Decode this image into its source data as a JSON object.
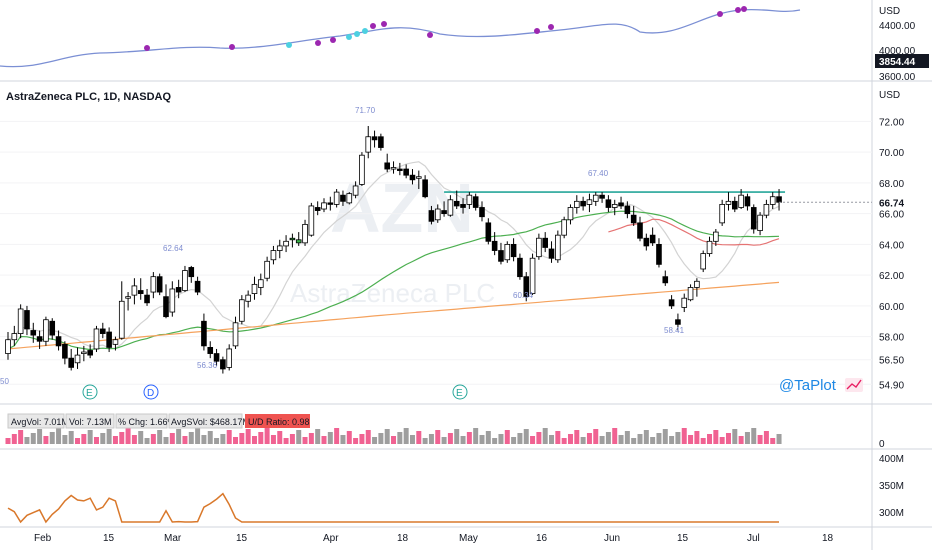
{
  "header": {
    "title": "AstraZeneca PLC, 1D, NASDAQ",
    "currency": "USD",
    "watermark_symbol": "AZN",
    "watermark_name": "AstraZeneca PLC",
    "brand": "@TaPlot"
  },
  "index_pane": {
    "currency": "USD",
    "ticks": [
      "4400.00",
      "4000.00",
      "3600.00"
    ],
    "last_value": "3854.44"
  },
  "volume_stats": {
    "avg_vol": "AvgVol: 7.01M",
    "vol": "Vol: 7.13M",
    "pct_chg": "% Chg: 1.66%",
    "avg_dollar_vol": "AvgSVol: $468.17M",
    "ud_ratio": "U/D Ratio: 0.98",
    "zero_tick": "0"
  },
  "obv_pane": {
    "ticks": [
      "400M",
      "350M",
      "300M"
    ]
  },
  "events": [
    "E",
    "D",
    "E"
  ],
  "colors": {
    "up_candle": "#ffffff",
    "down_candle": "#000000",
    "breakout_candle": "#3cb44b",
    "resistance": "#26a69a",
    "ma_short": "#d3d3d3",
    "ma_mid": "#4caf50",
    "ma_long": "#f5a25d",
    "ma_red": "#e57373",
    "index_line": "#7b8fd4",
    "index_dot": "#9c27b0",
    "index_dot_alt": "#4dd0e1",
    "volume_up": "#f06292",
    "volume_down": "#9e9e9e",
    "obv_line": "#d9782b",
    "ud_badge": "#ef5350"
  },
  "chart_data": {
    "type": "candlestick",
    "symbol": "AZN",
    "interval": "1D",
    "y_axis_ticks": [
      "72.00",
      "70.00",
      "68.00",
      "66.00",
      "64.00",
      "62.00",
      "60.00",
      "58.00",
      "56.50",
      "54.90"
    ],
    "last_price": "66.74",
    "x_axis_labels": [
      "Feb",
      "15",
      "Mar",
      "15",
      "Apr",
      "18",
      "May",
      "16",
      "Jun",
      "15",
      "Jul",
      "18"
    ],
    "resistance_level": 67.4,
    "annotations": [
      {
        "label": "50",
        "value": 50
      },
      {
        "label": "62.64",
        "value": 62.64
      },
      {
        "label": "56.36",
        "value": 56.36
      },
      {
        "label": "71.70",
        "value": 71.7
      },
      {
        "label": "60.34",
        "value": 60.34
      },
      {
        "label": "67.40",
        "value": 67.4
      },
      {
        "label": "58.41",
        "value": 58.41
      }
    ],
    "candles": [
      {
        "o": 56.9,
        "h": 58.3,
        "l": 56.5,
        "c": 57.8
      },
      {
        "o": 57.8,
        "h": 58.7,
        "l": 57.4,
        "c": 58.2
      },
      {
        "o": 58.2,
        "h": 60.1,
        "l": 57.9,
        "c": 59.8
      },
      {
        "o": 59.7,
        "h": 60.0,
        "l": 58.1,
        "c": 58.5
      },
      {
        "o": 58.4,
        "h": 58.9,
        "l": 57.6,
        "c": 58.1
      },
      {
        "o": 58.0,
        "h": 58.4,
        "l": 57.2,
        "c": 57.7
      },
      {
        "o": 57.7,
        "h": 59.3,
        "l": 57.4,
        "c": 59.1
      },
      {
        "o": 59.0,
        "h": 59.2,
        "l": 57.8,
        "c": 58.1
      },
      {
        "o": 58.0,
        "h": 58.4,
        "l": 57.1,
        "c": 57.4
      },
      {
        "o": 57.5,
        "h": 57.7,
        "l": 56.2,
        "c": 56.6
      },
      {
        "o": 56.6,
        "h": 57.2,
        "l": 55.8,
        "c": 56.0
      },
      {
        "o": 56.3,
        "h": 57.3,
        "l": 55.9,
        "c": 56.8
      },
      {
        "o": 56.9,
        "h": 57.4,
        "l": 56.4,
        "c": 57.0
      },
      {
        "o": 57.1,
        "h": 57.5,
        "l": 56.6,
        "c": 56.8
      },
      {
        "o": 57.2,
        "h": 58.7,
        "l": 57.0,
        "c": 58.5
      },
      {
        "o": 58.5,
        "h": 58.9,
        "l": 57.9,
        "c": 58.2
      },
      {
        "o": 58.3,
        "h": 58.6,
        "l": 57.0,
        "c": 57.3
      },
      {
        "o": 57.5,
        "h": 58.0,
        "l": 57.1,
        "c": 57.8
      },
      {
        "o": 57.9,
        "h": 61.6,
        "l": 57.8,
        "c": 60.3
      },
      {
        "o": 60.5,
        "h": 60.9,
        "l": 59.7,
        "c": 60.6
      },
      {
        "o": 60.7,
        "h": 61.8,
        "l": 60.1,
        "c": 61.3
      },
      {
        "o": 61.0,
        "h": 61.8,
        "l": 60.4,
        "c": 60.8
      },
      {
        "o": 60.7,
        "h": 61.1,
        "l": 60.0,
        "c": 60.2
      },
      {
        "o": 60.9,
        "h": 62.2,
        "l": 60.5,
        "c": 61.9
      },
      {
        "o": 61.9,
        "h": 62.1,
        "l": 60.7,
        "c": 60.9
      },
      {
        "o": 60.6,
        "h": 61.4,
        "l": 59.2,
        "c": 59.3
      },
      {
        "o": 59.6,
        "h": 61.6,
        "l": 59.3,
        "c": 61.1
      },
      {
        "o": 61.2,
        "h": 61.7,
        "l": 60.5,
        "c": 60.9
      },
      {
        "o": 61.0,
        "h": 62.6,
        "l": 60.9,
        "c": 62.3
      },
      {
        "o": 62.5,
        "h": 62.6,
        "l": 61.5,
        "c": 61.9
      },
      {
        "o": 61.6,
        "h": 61.9,
        "l": 60.7,
        "c": 60.9
      },
      {
        "o": 59.0,
        "h": 59.5,
        "l": 57.1,
        "c": 57.4
      },
      {
        "o": 57.3,
        "h": 57.7,
        "l": 56.6,
        "c": 56.9
      },
      {
        "o": 56.9,
        "h": 57.2,
        "l": 56.1,
        "c": 56.4
      },
      {
        "o": 56.5,
        "h": 56.7,
        "l": 55.6,
        "c": 55.9
      },
      {
        "o": 56.0,
        "h": 57.5,
        "l": 55.8,
        "c": 57.2
      },
      {
        "o": 57.4,
        "h": 59.3,
        "l": 57.2,
        "c": 58.9
      },
      {
        "o": 59.0,
        "h": 60.7,
        "l": 58.8,
        "c": 60.4
      },
      {
        "o": 60.3,
        "h": 61.0,
        "l": 59.9,
        "c": 60.7
      },
      {
        "o": 60.8,
        "h": 61.9,
        "l": 60.4,
        "c": 61.4
      },
      {
        "o": 61.2,
        "h": 62.1,
        "l": 60.7,
        "c": 61.7
      },
      {
        "o": 61.8,
        "h": 63.2,
        "l": 61.6,
        "c": 62.9
      },
      {
        "o": 63.0,
        "h": 63.9,
        "l": 62.7,
        "c": 63.6
      },
      {
        "o": 63.6,
        "h": 64.3,
        "l": 63.1,
        "c": 63.9
      },
      {
        "o": 63.9,
        "h": 64.6,
        "l": 63.5,
        "c": 64.2
      },
      {
        "o": 64.3,
        "h": 64.7,
        "l": 63.8,
        "c": 64.4
      },
      {
        "o": 64.3,
        "h": 64.8,
        "l": 63.9,
        "c": 64.1
      },
      {
        "o": 64.1,
        "h": 65.6,
        "l": 63.9,
        "c": 65.3
      },
      {
        "o": 64.6,
        "h": 66.7,
        "l": 64.5,
        "c": 66.5
      },
      {
        "o": 66.4,
        "h": 66.8,
        "l": 65.9,
        "c": 66.2
      },
      {
        "o": 66.3,
        "h": 67.0,
        "l": 66.1,
        "c": 66.7
      },
      {
        "o": 66.7,
        "h": 67.1,
        "l": 66.2,
        "c": 66.6
      },
      {
        "o": 66.6,
        "h": 67.6,
        "l": 66.4,
        "c": 67.4
      },
      {
        "o": 67.2,
        "h": 67.5,
        "l": 66.5,
        "c": 66.8
      },
      {
        "o": 66.7,
        "h": 67.4,
        "l": 66.6,
        "c": 67.3
      },
      {
        "o": 67.2,
        "h": 68.1,
        "l": 67.0,
        "c": 67.8
      },
      {
        "o": 67.9,
        "h": 70.0,
        "l": 67.8,
        "c": 69.8
      },
      {
        "o": 70.0,
        "h": 71.7,
        "l": 69.6,
        "c": 71.0
      },
      {
        "o": 71.0,
        "h": 71.4,
        "l": 70.3,
        "c": 70.8
      },
      {
        "o": 71.0,
        "h": 71.2,
        "l": 70.1,
        "c": 70.3
      },
      {
        "o": 69.3,
        "h": 69.9,
        "l": 68.7,
        "c": 68.9
      },
      {
        "o": 68.9,
        "h": 69.4,
        "l": 68.6,
        "c": 69.0
      },
      {
        "o": 68.9,
        "h": 69.3,
        "l": 68.5,
        "c": 68.8
      },
      {
        "o": 68.9,
        "h": 69.2,
        "l": 68.3,
        "c": 68.5
      },
      {
        "o": 68.5,
        "h": 68.9,
        "l": 67.9,
        "c": 68.2
      },
      {
        "o": 68.3,
        "h": 68.8,
        "l": 67.6,
        "c": 68.4
      },
      {
        "o": 68.2,
        "h": 68.5,
        "l": 67.0,
        "c": 67.1
      },
      {
        "o": 66.2,
        "h": 66.5,
        "l": 65.3,
        "c": 65.5
      },
      {
        "o": 65.6,
        "h": 66.6,
        "l": 65.4,
        "c": 66.3
      },
      {
        "o": 66.2,
        "h": 66.8,
        "l": 65.8,
        "c": 66.0
      },
      {
        "o": 65.9,
        "h": 67.2,
        "l": 65.8,
        "c": 66.9
      },
      {
        "o": 66.8,
        "h": 67.5,
        "l": 66.3,
        "c": 66.5
      },
      {
        "o": 66.6,
        "h": 67.0,
        "l": 66.0,
        "c": 66.4
      },
      {
        "o": 66.6,
        "h": 67.4,
        "l": 66.3,
        "c": 67.2
      },
      {
        "o": 67.1,
        "h": 67.3,
        "l": 66.2,
        "c": 66.4
      },
      {
        "o": 66.4,
        "h": 66.8,
        "l": 65.5,
        "c": 65.8
      },
      {
        "o": 65.4,
        "h": 65.7,
        "l": 64.0,
        "c": 64.2
      },
      {
        "o": 64.2,
        "h": 64.8,
        "l": 63.3,
        "c": 63.6
      },
      {
        "o": 63.6,
        "h": 64.1,
        "l": 62.7,
        "c": 62.9
      },
      {
        "o": 63.0,
        "h": 64.2,
        "l": 62.8,
        "c": 64.0
      },
      {
        "o": 64.0,
        "h": 64.4,
        "l": 62.9,
        "c": 63.2
      },
      {
        "o": 63.1,
        "h": 63.4,
        "l": 61.7,
        "c": 61.9
      },
      {
        "o": 61.9,
        "h": 62.2,
        "l": 60.3,
        "c": 60.6
      },
      {
        "o": 60.8,
        "h": 63.4,
        "l": 60.7,
        "c": 63.1
      },
      {
        "o": 63.2,
        "h": 64.7,
        "l": 63.0,
        "c": 64.4
      },
      {
        "o": 64.4,
        "h": 64.8,
        "l": 63.5,
        "c": 63.8
      },
      {
        "o": 63.7,
        "h": 64.2,
        "l": 62.8,
        "c": 63.1
      },
      {
        "o": 63.0,
        "h": 64.9,
        "l": 62.8,
        "c": 64.6
      },
      {
        "o": 64.6,
        "h": 65.8,
        "l": 64.4,
        "c": 65.6
      },
      {
        "o": 65.6,
        "h": 66.6,
        "l": 65.3,
        "c": 66.4
      },
      {
        "o": 66.4,
        "h": 67.2,
        "l": 66.0,
        "c": 66.8
      },
      {
        "o": 66.8,
        "h": 67.1,
        "l": 66.2,
        "c": 66.5
      },
      {
        "o": 66.6,
        "h": 67.3,
        "l": 66.1,
        "c": 66.9
      },
      {
        "o": 66.8,
        "h": 67.4,
        "l": 66.5,
        "c": 67.2
      },
      {
        "o": 67.2,
        "h": 67.4,
        "l": 66.7,
        "c": 67.0
      },
      {
        "o": 66.9,
        "h": 67.2,
        "l": 66.1,
        "c": 66.4
      },
      {
        "o": 66.4,
        "h": 66.9,
        "l": 65.9,
        "c": 66.6
      },
      {
        "o": 66.7,
        "h": 67.1,
        "l": 66.3,
        "c": 66.5
      },
      {
        "o": 66.5,
        "h": 66.8,
        "l": 65.7,
        "c": 66.0
      },
      {
        "o": 65.9,
        "h": 66.5,
        "l": 65.2,
        "c": 65.4
      },
      {
        "o": 65.4,
        "h": 65.8,
        "l": 64.2,
        "c": 64.4
      },
      {
        "o": 64.4,
        "h": 64.7,
        "l": 63.6,
        "c": 63.9
      },
      {
        "o": 64.6,
        "h": 65.1,
        "l": 63.9,
        "c": 64.1
      },
      {
        "o": 64.0,
        "h": 64.4,
        "l": 62.5,
        "c": 62.7
      },
      {
        "o": 61.9,
        "h": 62.3,
        "l": 61.3,
        "c": 61.5
      },
      {
        "o": 60.4,
        "h": 60.7,
        "l": 59.8,
        "c": 60.0
      },
      {
        "o": 59.1,
        "h": 59.5,
        "l": 58.4,
        "c": 58.8
      },
      {
        "o": 59.9,
        "h": 60.8,
        "l": 59.6,
        "c": 60.5
      },
      {
        "o": 60.4,
        "h": 61.4,
        "l": 60.3,
        "c": 61.2
      },
      {
        "o": 61.2,
        "h": 61.8,
        "l": 60.6,
        "c": 61.6
      },
      {
        "o": 62.4,
        "h": 63.6,
        "l": 62.2,
        "c": 63.4
      },
      {
        "o": 63.4,
        "h": 64.5,
        "l": 63.2,
        "c": 64.2
      },
      {
        "o": 64.2,
        "h": 65.0,
        "l": 63.9,
        "c": 64.8
      },
      {
        "o": 65.4,
        "h": 66.9,
        "l": 65.2,
        "c": 66.6
      },
      {
        "o": 66.6,
        "h": 67.4,
        "l": 66.2,
        "c": 66.8
      },
      {
        "o": 66.8,
        "h": 67.1,
        "l": 66.1,
        "c": 66.3
      },
      {
        "o": 66.4,
        "h": 67.6,
        "l": 66.3,
        "c": 67.2
      },
      {
        "o": 67.1,
        "h": 67.3,
        "l": 66.2,
        "c": 66.5
      },
      {
        "o": 66.4,
        "h": 66.6,
        "l": 64.7,
        "c": 65.0
      },
      {
        "o": 64.9,
        "h": 66.1,
        "l": 64.6,
        "c": 65.9
      },
      {
        "o": 65.9,
        "h": 66.9,
        "l": 65.7,
        "c": 66.6
      },
      {
        "o": 66.6,
        "h": 67.4,
        "l": 66.3,
        "c": 67.1
      },
      {
        "o": 67.1,
        "h": 67.6,
        "l": 66.2,
        "c": 66.74
      }
    ]
  }
}
